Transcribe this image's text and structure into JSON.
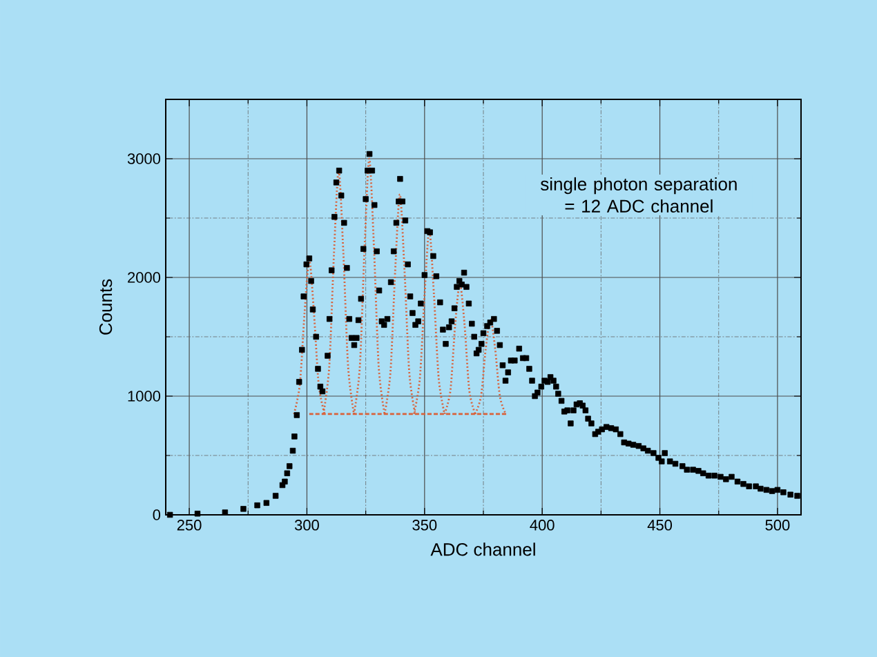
{
  "chart_data": {
    "type": "scatter",
    "xlabel": "ADC channel",
    "ylabel": "Counts",
    "annotations": [
      "single photon separation = 12 ADC channel"
    ],
    "xlim": [
      240,
      510
    ],
    "ylim": [
      0,
      3500
    ],
    "xticks": [
      250,
      {
        "value": 275,
        "label": null
      },
      300,
      {
        "value": 325,
        "label": null
      },
      350,
      {
        "value": 375,
        "label": null
      },
      400,
      {
        "value": 425,
        "label": null
      },
      450,
      {
        "value": 475,
        "label": null
      },
      500
    ],
    "yticks": [
      0,
      {
        "value": 500,
        "label": null
      },
      1000,
      {
        "value": 1500,
        "label": null
      },
      2000,
      {
        "value": 2500,
        "label": null
      },
      3000
    ],
    "grid": true,
    "series": [
      {
        "marker": "square",
        "color": "#000000",
        "x": [
          241.8,
          253.5,
          265.2,
          273,
          278.9,
          282.8,
          286.7,
          289.6,
          290.6,
          291.6,
          292.6,
          294,
          294.7,
          295.7,
          296.7,
          297.9,
          298.6,
          299.8,
          301,
          301.8,
          302.5,
          303.9,
          304.7,
          305.7,
          306.6,
          308.8,
          309.6,
          310.5,
          311.7,
          312.5,
          313.7,
          314.6,
          315.8,
          317,
          318,
          319,
          320.1,
          321.1,
          321.9,
          323,
          324,
          325,
          325.8,
          326.6,
          327.7,
          328.7,
          329.7,
          330.7,
          331.8,
          332.8,
          334.2,
          335.7,
          336.9,
          338,
          339,
          339.6,
          340.6,
          341.8,
          342.9,
          343.9,
          344.9,
          346.1,
          347.3,
          348.4,
          350,
          351.2,
          352.3,
          353.7,
          355,
          356.6,
          357.8,
          359,
          360.4,
          361.5,
          362.7,
          363.7,
          364.8,
          365.8,
          366.8,
          367.8,
          368.8,
          370.1,
          371.1,
          372.1,
          373,
          374.2,
          375,
          376.6,
          377.9,
          379.5,
          380.8,
          382,
          383.2,
          384.4,
          385.5,
          386.7,
          388.3,
          390.2,
          391.8,
          393.2,
          394.5,
          395.7,
          396.9,
          398,
          399.6,
          401,
          402.3,
          403.5,
          404.8,
          405.9,
          406.8,
          408.2,
          409.4,
          410.7,
          412.1,
          413.3,
          414.6,
          416,
          417.2,
          418.4,
          419.5,
          420.9,
          422.5,
          423.8,
          425.4,
          427.3,
          429.3,
          431.3,
          433.2,
          434.8,
          436.7,
          438.7,
          441,
          443,
          444.9,
          447.3,
          449.4,
          450.8,
          452.1,
          454.3,
          456.6,
          459.6,
          461.5,
          464.1,
          466.4,
          468.4,
          470.7,
          473.2,
          475.8,
          478.1,
          480.5,
          483,
          485.5,
          487.9,
          490.8,
          492.8,
          495.3,
          497.7,
          500,
          502.5,
          505.5,
          508.4
        ],
        "values": [
          0,
          10,
          20,
          50,
          80,
          100,
          160,
          250,
          280,
          350,
          410,
          540,
          660,
          840,
          1120,
          1390,
          1840,
          2110,
          2160,
          1970,
          1730,
          1500,
          1230,
          1080,
          1040,
          1340,
          1650,
          2060,
          2510,
          2800,
          2900,
          2690,
          2460,
          2080,
          1650,
          1490,
          1430,
          1490,
          1640,
          1820,
          2240,
          2660,
          2900,
          3040,
          2900,
          2610,
          2220,
          1890,
          1630,
          1600,
          1650,
          1960,
          2220,
          2460,
          2640,
          2830,
          2640,
          2480,
          2110,
          1840,
          1700,
          1600,
          1630,
          1780,
          2020,
          2390,
          2380,
          2180,
          2010,
          1790,
          1560,
          1440,
          1580,
          1630,
          1740,
          1920,
          1970,
          1940,
          2040,
          1920,
          1780,
          1610,
          1500,
          1360,
          1390,
          1440,
          1530,
          1590,
          1620,
          1650,
          1550,
          1430,
          1260,
          1130,
          1200,
          1300,
          1300,
          1400,
          1320,
          1320,
          1230,
          1130,
          1000,
          1030,
          1080,
          1130,
          1120,
          1160,
          1130,
          1080,
          1020,
          960,
          870,
          880,
          770,
          880,
          930,
          940,
          920,
          880,
          810,
          770,
          680,
          700,
          720,
          740,
          730,
          720,
          680,
          610,
          600,
          590,
          580,
          560,
          540,
          520,
          480,
          450,
          520,
          450,
          430,
          410,
          380,
          380,
          370,
          350,
          330,
          330,
          320,
          300,
          320,
          280,
          260,
          240,
          240,
          220,
          210,
          200,
          210,
          190,
          170,
          160
        ]
      },
      {
        "type": "line",
        "line_style": "dotted",
        "color": "#d9623b",
        "x": [
          294.5,
          297,
          299,
          301,
          303,
          305,
          307.5
        ],
        "values": [
          850,
          1100,
          1700,
          2150,
          1700,
          1100,
          850
        ]
      },
      {
        "type": "line",
        "line_style": "dotted",
        "color": "#d9623b",
        "x": [
          307,
          309.5,
          311.5,
          313.5,
          315.5,
          317.5,
          320
        ],
        "values": [
          850,
          1250,
          2200,
          2900,
          2200,
          1250,
          850
        ]
      },
      {
        "type": "line",
        "line_style": "dotted",
        "color": "#d9623b",
        "x": [
          320,
          322.5,
          324.5,
          326.5,
          328.5,
          330.5,
          333
        ],
        "values": [
          850,
          1250,
          2250,
          3000,
          2250,
          1250,
          850
        ]
      },
      {
        "type": "line",
        "line_style": "dotted",
        "color": "#d9623b",
        "x": [
          333,
          335.5,
          337.5,
          339.5,
          341.5,
          343.5,
          346
        ],
        "values": [
          850,
          1200,
          2050,
          2700,
          2050,
          1200,
          850
        ]
      },
      {
        "type": "line",
        "line_style": "dotted",
        "color": "#d9623b",
        "x": [
          345.5,
          348,
          350,
          352,
          354,
          356,
          358.5
        ],
        "values": [
          850,
          1150,
          1850,
          2400,
          1850,
          1150,
          850
        ]
      },
      {
        "type": "line",
        "line_style": "dotted",
        "color": "#d9623b",
        "x": [
          358.5,
          361,
          363,
          365,
          367,
          369,
          371.5
        ],
        "values": [
          850,
          1050,
          1600,
          1950,
          1600,
          1050,
          850
        ]
      },
      {
        "type": "line",
        "line_style": "dotted",
        "color": "#d9623b",
        "x": [
          371.5,
          374,
          376,
          378,
          380,
          382,
          384.5
        ],
        "values": [
          850,
          1000,
          1400,
          1650,
          1400,
          1000,
          850
        ]
      },
      {
        "type": "line",
        "line_style": "dashed",
        "color": "#d9623b",
        "x": [
          301,
          385
        ],
        "values": [
          850,
          850
        ]
      }
    ]
  }
}
